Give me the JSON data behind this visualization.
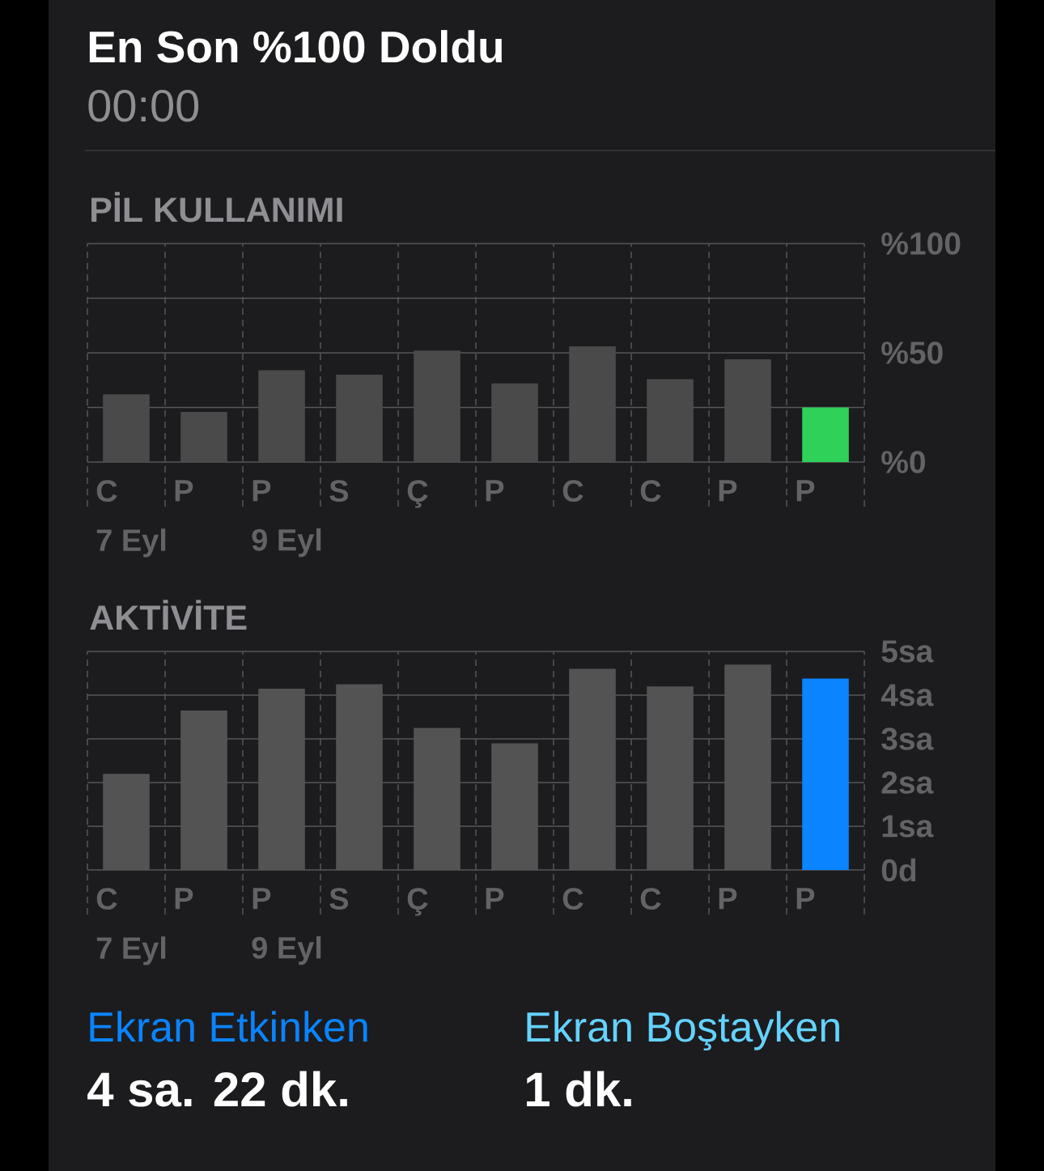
{
  "chart_data": [
    {
      "type": "other",
      "title": "En Son %100 Doldu",
      "subtitle": "00:00"
    },
    {
      "type": "bar",
      "title": "PİL KULLANIMI",
      "categories": [
        "C\n7 Eyl",
        "P",
        "P\n9 Eyl",
        "S",
        "Ç",
        "P",
        "C",
        "C",
        "P",
        "P"
      ],
      "values": [
        31,
        23,
        42,
        40,
        51,
        36,
        53,
        38,
        47,
        25
      ],
      "colors": [
        "#4a4a4a",
        "#4a4a4a",
        "#4a4a4a",
        "#4a4a4a",
        "#4a4a4a",
        "#4a4a4a",
        "#4a4a4a",
        "#4a4a4a",
        "#4a4a4a",
        "#30d158"
      ],
      "ylim": [
        0,
        100
      ],
      "yticks": [
        {
          "value": 0,
          "label": "%0"
        },
        {
          "value": 25,
          "label": null
        },
        {
          "value": 50,
          "label": "%50"
        },
        {
          "value": 75,
          "label": null
        },
        {
          "value": 100,
          "label": "%100"
        }
      ],
      "grid": true
    },
    {
      "type": "bar",
      "title": "AKTİVİTE",
      "categories": [
        "C\n7 Eyl",
        "P",
        "P\n9 Eyl",
        "S",
        "Ç",
        "P",
        "C",
        "C",
        "P",
        "P"
      ],
      "values": [
        2.2,
        3.65,
        4.15,
        4.25,
        3.25,
        2.9,
        4.6,
        4.2,
        4.7,
        4.38
      ],
      "colors": [
        "#535353",
        "#535353",
        "#535353",
        "#535353",
        "#535353",
        "#535353",
        "#535353",
        "#535353",
        "#535353",
        "#0a84ff"
      ],
      "ylim": [
        0,
        5
      ],
      "yticks": [
        {
          "value": 0,
          "label": "0d"
        },
        {
          "value": 1,
          "label": "1sa"
        },
        {
          "value": 2,
          "label": "2sa"
        },
        {
          "value": 3,
          "label": "3sa"
        },
        {
          "value": 4,
          "label": "4sa"
        },
        {
          "value": 5,
          "label": "5sa"
        }
      ],
      "grid": true
    },
    {
      "type": "other",
      "annotations": [
        "Ekran Etkinken",
        "4 sa. 22 dk.",
        "Ekran Boştayken",
        "1 dk."
      ],
      "colors": [
        "#0a84ff",
        "#ffffff",
        "#64d2ff",
        "#ffffff"
      ]
    }
  ]
}
